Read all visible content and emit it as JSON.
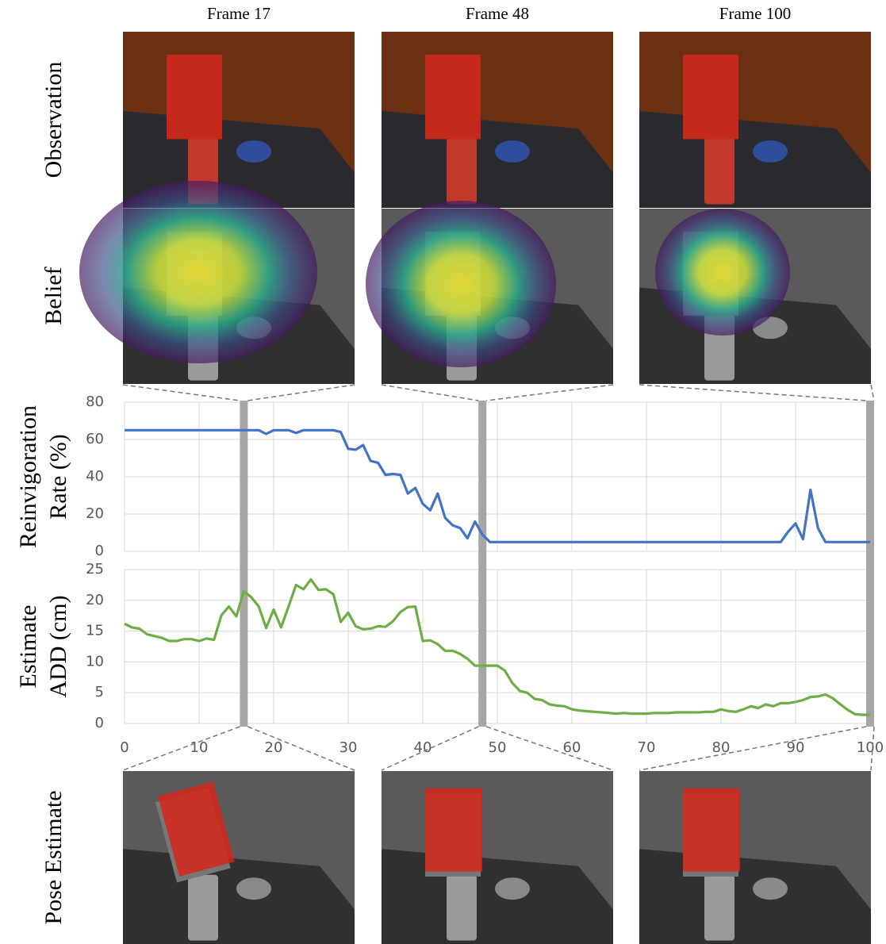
{
  "figure": {
    "columns": [
      "Frame 17",
      "Frame 48",
      "Frame 100"
    ],
    "rows": [
      "Observation",
      "Belief",
      "Pose Estimate"
    ]
  },
  "chart_data": [
    {
      "type": "line",
      "ylabel": [
        "Reinvigoration",
        "Rate (%)"
      ],
      "x": [
        0,
        1,
        2,
        3,
        4,
        5,
        6,
        7,
        8,
        9,
        10,
        11,
        12,
        13,
        14,
        15,
        16,
        17,
        18,
        19,
        20,
        21,
        22,
        23,
        24,
        25,
        26,
        27,
        28,
        29,
        30,
        31,
        32,
        33,
        34,
        35,
        36,
        37,
        38,
        39,
        40,
        41,
        42,
        43,
        44,
        45,
        46,
        47,
        48,
        49,
        50,
        51,
        52,
        53,
        54,
        55,
        56,
        57,
        58,
        59,
        60,
        61,
        62,
        63,
        64,
        65,
        66,
        67,
        68,
        69,
        70,
        71,
        72,
        73,
        74,
        75,
        76,
        77,
        78,
        79,
        80,
        81,
        82,
        83,
        84,
        85,
        86,
        87,
        88,
        89,
        90,
        91,
        92,
        93,
        94,
        95,
        96,
        97,
        98,
        99,
        100
      ],
      "series": [
        {
          "color": "#4472c4",
          "values": [
            65,
            65,
            65,
            65,
            65,
            65,
            65,
            65,
            65,
            65,
            65,
            65,
            65,
            65,
            65,
            65,
            65,
            65,
            65,
            63,
            65,
            65,
            65,
            63.5,
            65,
            65,
            65,
            65,
            65,
            64,
            55,
            54.5,
            57,
            48.5,
            47.5,
            41,
            41.5,
            41,
            31,
            34,
            25.5,
            22,
            31,
            18,
            14,
            12.5,
            7,
            16,
            9,
            5,
            5,
            5,
            5,
            5,
            5,
            5,
            5,
            5,
            5,
            5,
            5,
            5,
            5,
            5,
            5,
            5,
            5,
            5,
            5,
            5,
            5,
            5,
            5,
            5,
            5,
            5,
            5,
            5,
            5,
            5,
            5,
            5,
            5,
            5,
            5,
            5,
            5,
            5,
            5,
            10.5,
            15,
            6.5,
            33,
            12.5,
            5,
            5,
            5,
            5,
            5,
            5,
            5
          ]
        }
      ],
      "xlim": [
        0,
        100
      ],
      "xticks": [
        0,
        10,
        20,
        30,
        40,
        50,
        60,
        70,
        80,
        90,
        100
      ],
      "ylim": [
        0,
        80
      ],
      "yticks": [
        0,
        20,
        40,
        60,
        80
      ],
      "grid": true,
      "highlights": [
        16,
        48,
        100
      ]
    },
    {
      "type": "line",
      "ylabel": [
        "Estimate",
        "ADD (cm)"
      ],
      "x": [
        0,
        1,
        2,
        3,
        4,
        5,
        6,
        7,
        8,
        9,
        10,
        11,
        12,
        13,
        14,
        15,
        16,
        17,
        18,
        19,
        20,
        21,
        22,
        23,
        24,
        25,
        26,
        27,
        28,
        29,
        30,
        31,
        32,
        33,
        34,
        35,
        36,
        37,
        38,
        39,
        40,
        41,
        42,
        43,
        44,
        45,
        46,
        47,
        48,
        49,
        50,
        51,
        52,
        53,
        54,
        55,
        56,
        57,
        58,
        59,
        60,
        61,
        62,
        63,
        64,
        65,
        66,
        67,
        68,
        69,
        70,
        71,
        72,
        73,
        74,
        75,
        76,
        77,
        78,
        79,
        80,
        81,
        82,
        83,
        84,
        85,
        86,
        87,
        88,
        89,
        90,
        91,
        92,
        93,
        94,
        95,
        96,
        97,
        98,
        99,
        100
      ],
      "series": [
        {
          "color": "#70ad47",
          "values": [
            16.2,
            15.6,
            15.4,
            14.5,
            14.2,
            13.9,
            13.4,
            13.4,
            13.7,
            13.7,
            13.4,
            13.8,
            13.6,
            17.6,
            19,
            17.4,
            21.5,
            20.5,
            19,
            15.5,
            18.5,
            15.6,
            19,
            22.5,
            21.8,
            23.4,
            21.7,
            21.8,
            21,
            16.5,
            18,
            15.8,
            15.3,
            15.4,
            15.8,
            15.7,
            16.6,
            18.1,
            18.9,
            19,
            13.4,
            13.5,
            12.9,
            11.8,
            11.8,
            11.3,
            10.5,
            9.4,
            9.4,
            9.4,
            9.4,
            8.6,
            6.6,
            5.3,
            5,
            4,
            3.8,
            3.1,
            2.9,
            2.8,
            2.3,
            2.1,
            2,
            1.9,
            1.8,
            1.7,
            1.6,
            1.7,
            1.6,
            1.6,
            1.6,
            1.7,
            1.7,
            1.7,
            1.8,
            1.8,
            1.8,
            1.8,
            1.9,
            1.9,
            2.3,
            2,
            1.9,
            2.3,
            2.8,
            2.5,
            3.1,
            2.8,
            3.3,
            3.3,
            3.5,
            3.8,
            4.3,
            4.4,
            4.7,
            4.1,
            3.1,
            2.2,
            1.5,
            1.4,
            1.4
          ]
        }
      ],
      "xlim": [
        0,
        100
      ],
      "xticks": [
        0,
        10,
        20,
        30,
        40,
        50,
        60,
        70,
        80,
        90,
        100
      ],
      "ylim": [
        0,
        25
      ],
      "yticks": [
        0,
        5,
        10,
        15,
        20,
        25
      ],
      "grid": true
    }
  ]
}
